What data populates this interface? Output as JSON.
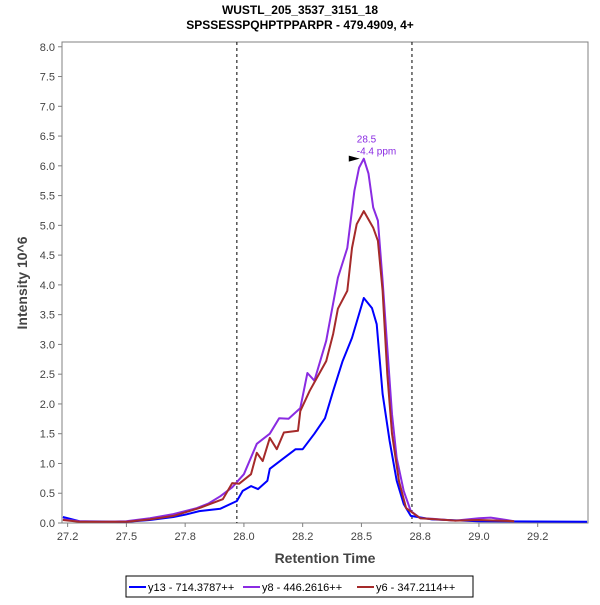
{
  "chart_data": {
    "type": "line",
    "title": "WUSTL_205_3537_3151_18",
    "subtitle": "SPSSESSPQHPTPPARPR - 479.4909, 4+",
    "xlabel": "Retention Time",
    "ylabel": "Intensity 10^6",
    "xlim": [
      27.226,
      29.464
    ],
    "ylim": [
      0,
      8.08
    ],
    "x_ticks": [
      27.25,
      27.5,
      27.75,
      28.0,
      28.25,
      28.5,
      28.75,
      29.0,
      29.25
    ],
    "x_tick_labels": [
      "27.2",
      "27.5",
      "27.8",
      "28.0",
      "28.2",
      "28.5",
      "28.8",
      "29.0",
      "29.2"
    ],
    "y_ticks": [
      0,
      0.5,
      1,
      1.5,
      2,
      2.5,
      3,
      3.5,
      4,
      4.5,
      5,
      5.5,
      6,
      6.5,
      7,
      7.5,
      8
    ],
    "y_tick_labels": [
      "0.0",
      "0.5",
      "1.0",
      "1.5",
      "2.0",
      "2.5",
      "3.0",
      "3.5",
      "4.0",
      "4.5",
      "5.0",
      "5.5",
      "6.0",
      "6.5",
      "7.0",
      "7.5",
      "8.0"
    ],
    "grid": false,
    "legend_position": "bottom",
    "integration_bounds": [
      27.97,
      28.715
    ],
    "annotation": {
      "x": 28.51,
      "y": 6.12,
      "line1": "28.5",
      "line2": "-4.4 ppm",
      "color": "#8a2be2"
    },
    "series": [
      {
        "name": "y13 - 714.3787++",
        "color": "#0000ff",
        "points": [
          [
            27.23,
            0.1
          ],
          [
            27.3,
            0.03
          ],
          [
            27.5,
            0.02
          ],
          [
            27.6,
            0.05
          ],
          [
            27.7,
            0.1
          ],
          [
            27.75,
            0.14
          ],
          [
            27.81,
            0.2
          ],
          [
            27.9,
            0.24
          ],
          [
            27.97,
            0.37
          ],
          [
            27.995,
            0.54
          ],
          [
            28.03,
            0.62
          ],
          [
            28.06,
            0.57
          ],
          [
            28.1,
            0.71
          ],
          [
            28.11,
            0.91
          ],
          [
            28.17,
            1.09
          ],
          [
            28.22,
            1.24
          ],
          [
            28.25,
            1.24
          ],
          [
            28.3,
            1.5
          ],
          [
            28.345,
            1.76
          ],
          [
            28.38,
            2.22
          ],
          [
            28.42,
            2.72
          ],
          [
            28.46,
            3.11
          ],
          [
            28.51,
            3.78
          ],
          [
            28.545,
            3.61
          ],
          [
            28.565,
            3.34
          ],
          [
            28.59,
            2.17
          ],
          [
            28.62,
            1.38
          ],
          [
            28.65,
            0.71
          ],
          [
            28.68,
            0.32
          ],
          [
            28.71,
            0.12
          ],
          [
            28.8,
            0.06
          ],
          [
            29.0,
            0.03
          ],
          [
            29.46,
            0.02
          ]
        ]
      },
      {
        "name": "y8 - 446.2616++",
        "color": "#8a2be2",
        "points": [
          [
            27.23,
            0.06
          ],
          [
            27.3,
            0.03
          ],
          [
            27.4,
            0.02
          ],
          [
            27.5,
            0.03
          ],
          [
            27.6,
            0.08
          ],
          [
            27.7,
            0.15
          ],
          [
            27.75,
            0.2
          ],
          [
            27.8,
            0.25
          ],
          [
            27.85,
            0.33
          ],
          [
            27.9,
            0.45
          ],
          [
            27.95,
            0.6
          ],
          [
            28.0,
            0.82
          ],
          [
            28.055,
            1.33
          ],
          [
            28.11,
            1.5
          ],
          [
            28.15,
            1.76
          ],
          [
            28.19,
            1.75
          ],
          [
            28.24,
            1.93
          ],
          [
            28.27,
            2.52
          ],
          [
            28.3,
            2.39
          ],
          [
            28.35,
            3.06
          ],
          [
            28.4,
            4.12
          ],
          [
            28.44,
            4.62
          ],
          [
            28.47,
            5.58
          ],
          [
            28.49,
            5.97
          ],
          [
            28.51,
            6.12
          ],
          [
            28.53,
            5.87
          ],
          [
            28.55,
            5.3
          ],
          [
            28.57,
            5.08
          ],
          [
            28.59,
            4.07
          ],
          [
            28.61,
            2.94
          ],
          [
            28.63,
            1.83
          ],
          [
            28.65,
            1.09
          ],
          [
            28.68,
            0.54
          ],
          [
            28.71,
            0.2
          ],
          [
            28.75,
            0.08
          ],
          [
            28.8,
            0.07
          ],
          [
            28.9,
            0.04
          ],
          [
            29.0,
            0.08
          ],
          [
            29.05,
            0.09
          ],
          [
            29.1,
            0.06
          ],
          [
            29.15,
            0.03
          ]
        ]
      },
      {
        "name": "y6 - 347.2114++",
        "color": "#a52a2a",
        "points": [
          [
            27.23,
            0.05
          ],
          [
            27.3,
            0.02
          ],
          [
            27.5,
            0.02
          ],
          [
            27.6,
            0.06
          ],
          [
            27.7,
            0.12
          ],
          [
            27.81,
            0.25
          ],
          [
            27.91,
            0.4
          ],
          [
            27.95,
            0.67
          ],
          [
            27.98,
            0.66
          ],
          [
            28.03,
            0.82
          ],
          [
            28.055,
            1.18
          ],
          [
            28.08,
            1.04
          ],
          [
            28.11,
            1.43
          ],
          [
            28.14,
            1.24
          ],
          [
            28.17,
            1.52
          ],
          [
            28.23,
            1.55
          ],
          [
            28.24,
            1.88
          ],
          [
            28.28,
            2.22
          ],
          [
            28.35,
            2.72
          ],
          [
            28.38,
            3.18
          ],
          [
            28.4,
            3.6
          ],
          [
            28.44,
            3.9
          ],
          [
            28.46,
            4.62
          ],
          [
            28.48,
            5.02
          ],
          [
            28.51,
            5.24
          ],
          [
            28.55,
            4.96
          ],
          [
            28.57,
            4.74
          ],
          [
            28.59,
            3.9
          ],
          [
            28.61,
            2.5
          ],
          [
            28.63,
            1.5
          ],
          [
            28.66,
            0.7
          ],
          [
            28.69,
            0.25
          ],
          [
            28.75,
            0.08
          ],
          [
            28.9,
            0.04
          ],
          [
            29.0,
            0.05
          ],
          [
            29.15,
            0.03
          ]
        ]
      }
    ]
  }
}
